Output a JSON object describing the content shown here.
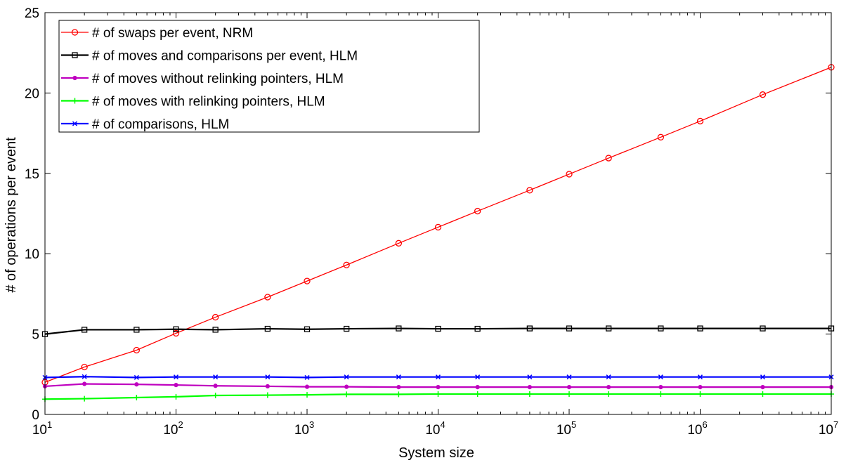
{
  "chart_data": {
    "type": "line",
    "xscale": "log",
    "xlabel": "System size",
    "ylabel": "# of operations per event",
    "xlim": [
      10,
      10000000
    ],
    "ylim": [
      0,
      25
    ],
    "yticks": [
      0,
      5,
      10,
      15,
      20,
      25
    ],
    "xticks": [
      {
        "value": 10,
        "base": "10",
        "exp": "1"
      },
      {
        "value": 100,
        "base": "10",
        "exp": "2"
      },
      {
        "value": 1000,
        "base": "10",
        "exp": "3"
      },
      {
        "value": 10000,
        "base": "10",
        "exp": "4"
      },
      {
        "value": 100000,
        "base": "10",
        "exp": "5"
      },
      {
        "value": 1000000,
        "base": "10",
        "exp": "6"
      },
      {
        "value": 10000000,
        "base": "10",
        "exp": "7"
      }
    ],
    "x": [
      10,
      20,
      50,
      100,
      200,
      500,
      1000,
      2000,
      5000,
      10000,
      20000,
      50000,
      100000,
      200000,
      500000,
      1000000,
      3000000,
      10000000
    ],
    "legend_position": "top-left",
    "series": [
      {
        "name": "# of swaps per event, NRM",
        "color": "#ff0000",
        "marker": "circle",
        "values": [
          2.0,
          2.95,
          4.0,
          5.05,
          6.05,
          7.3,
          8.3,
          9.3,
          10.65,
          11.65,
          12.65,
          13.95,
          14.95,
          15.95,
          17.25,
          18.25,
          19.9,
          21.6
        ]
      },
      {
        "name": "# of moves and comparisons per event, HLM",
        "color": "#000000",
        "marker": "square",
        "values": [
          5.0,
          5.27,
          5.27,
          5.3,
          5.27,
          5.33,
          5.3,
          5.33,
          5.35,
          5.33,
          5.33,
          5.35,
          5.35,
          5.35,
          5.35,
          5.35,
          5.35,
          5.35
        ]
      },
      {
        "name": "# of moves without relinking pointers, HLM",
        "color": "#bf00bf",
        "marker": "dot",
        "values": [
          1.75,
          1.9,
          1.87,
          1.83,
          1.78,
          1.75,
          1.72,
          1.72,
          1.7,
          1.7,
          1.7,
          1.7,
          1.7,
          1.7,
          1.7,
          1.7,
          1.7,
          1.7
        ]
      },
      {
        "name": "# of moves with relinking pointers, HLM",
        "color": "#00ff00",
        "marker": "plus",
        "values": [
          0.95,
          0.98,
          1.05,
          1.1,
          1.18,
          1.2,
          1.22,
          1.25,
          1.25,
          1.27,
          1.27,
          1.27,
          1.27,
          1.27,
          1.27,
          1.27,
          1.27,
          1.27
        ]
      },
      {
        "name": "# of comparisons, HLM",
        "color": "#0000ff",
        "marker": "x",
        "values": [
          2.3,
          2.35,
          2.3,
          2.33,
          2.33,
          2.33,
          2.3,
          2.33,
          2.33,
          2.33,
          2.33,
          2.33,
          2.33,
          2.33,
          2.33,
          2.33,
          2.33,
          2.33
        ]
      }
    ]
  }
}
